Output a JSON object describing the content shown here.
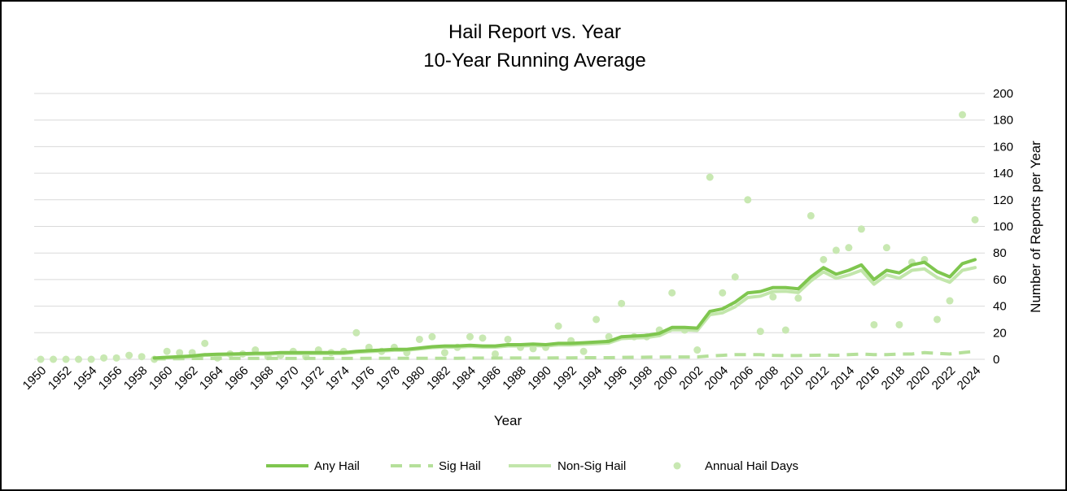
{
  "chart_data": {
    "type": "line",
    "title": "Hail Report vs. Year",
    "subtitle": "10-Year Running Average",
    "xlabel": "Year",
    "ylabel": "Number of Reports per Year",
    "ylim": [
      0,
      200
    ],
    "yticks": [
      0,
      20,
      40,
      60,
      80,
      100,
      120,
      140,
      160,
      180,
      200
    ],
    "y_axis_side": "right",
    "grid": true,
    "legend_position": "bottom",
    "x": [
      1950,
      1951,
      1952,
      1953,
      1954,
      1955,
      1956,
      1957,
      1958,
      1959,
      1960,
      1961,
      1962,
      1963,
      1964,
      1965,
      1966,
      1967,
      1968,
      1969,
      1970,
      1971,
      1972,
      1973,
      1974,
      1975,
      1976,
      1977,
      1978,
      1979,
      1980,
      1981,
      1982,
      1983,
      1984,
      1985,
      1986,
      1987,
      1988,
      1989,
      1990,
      1991,
      1992,
      1993,
      1994,
      1995,
      1996,
      1997,
      1998,
      1999,
      2000,
      2001,
      2002,
      2003,
      2004,
      2005,
      2006,
      2007,
      2008,
      2009,
      2010,
      2011,
      2012,
      2013,
      2014,
      2015,
      2016,
      2017,
      2018,
      2019,
      2020,
      2021,
      2022,
      2023,
      2024
    ],
    "x_tick_labels": [
      "1950",
      "1952",
      "1954",
      "1956",
      "1958",
      "1960",
      "1962",
      "1964",
      "1966",
      "1968",
      "1970",
      "1972",
      "1974",
      "1976",
      "1978",
      "1980",
      "1982",
      "1984",
      "1986",
      "1988",
      "1990",
      "1992",
      "1994",
      "1996",
      "1998",
      "2000",
      "2002",
      "2004",
      "2006",
      "2008",
      "2010",
      "2012",
      "2014",
      "2016",
      "2018",
      "2020",
      "2022",
      "2024"
    ],
    "series": [
      {
        "name": "Any Hail",
        "style": "solid-thick",
        "color": "#7fc64f",
        "values": [
          null,
          null,
          null,
          null,
          null,
          null,
          null,
          null,
          null,
          1,
          1.5,
          2,
          2.5,
          3.5,
          3.8,
          4,
          4.2,
          4.5,
          4.5,
          5,
          5,
          5,
          5,
          5,
          5,
          6,
          6.5,
          7,
          7.5,
          7.5,
          8.5,
          9.5,
          10,
          10,
          10.5,
          10,
          10,
          11,
          11,
          11.5,
          11,
          12,
          12,
          12.5,
          13,
          13.5,
          17,
          17.5,
          18,
          19.5,
          24,
          24,
          23.5,
          36,
          38,
          43,
          50,
          51,
          54,
          54,
          53,
          62,
          69,
          64,
          67,
          71,
          60,
          67,
          65,
          71,
          73,
          66,
          62,
          72,
          75
        ]
      },
      {
        "name": "Sig Hail",
        "style": "dashed",
        "color": "#b5e09a",
        "values": [
          null,
          null,
          null,
          null,
          null,
          null,
          null,
          null,
          null,
          0.3,
          0.4,
          0.5,
          0.6,
          0.6,
          0.7,
          0.7,
          0.7,
          0.7,
          0.7,
          0.7,
          0.7,
          0.7,
          0.7,
          0.7,
          0.7,
          0.7,
          0.8,
          0.8,
          0.8,
          0.8,
          0.8,
          0.8,
          0.8,
          0.8,
          0.9,
          0.9,
          0.9,
          1,
          1,
          1,
          1,
          1.1,
          1.1,
          1.2,
          1.2,
          1.2,
          1.4,
          1.5,
          1.6,
          1.7,
          1.8,
          1.8,
          1.8,
          2.5,
          3,
          3.5,
          3.5,
          3.5,
          3,
          2.8,
          2.8,
          3,
          3.2,
          3,
          3.5,
          4,
          3.5,
          3.5,
          4,
          4,
          5,
          4.5,
          4,
          5,
          6
        ]
      },
      {
        "name": "Non-Sig Hail",
        "style": "solid",
        "color": "#c2e6ab",
        "values": [
          null,
          null,
          null,
          null,
          null,
          null,
          null,
          null,
          null,
          0.8,
          1.2,
          1.6,
          2,
          3,
          3.2,
          3.4,
          3.6,
          3.9,
          3.9,
          4.3,
          4.3,
          4.3,
          4.3,
          4.3,
          4.3,
          5.2,
          5.8,
          6.2,
          6.8,
          6.8,
          7.8,
          8.8,
          9.2,
          9.2,
          9.7,
          9.2,
          9.2,
          10,
          10,
          10.4,
          10,
          10.9,
          10.9,
          11.3,
          11.8,
          12.3,
          15.6,
          16,
          16.4,
          17.8,
          22.2,
          22.2,
          21.7,
          33.5,
          35,
          39.5,
          46.5,
          47.5,
          51,
          51.2,
          50.2,
          59,
          65.8,
          61,
          63.5,
          67,
          56.5,
          63.5,
          61,
          67,
          68,
          61.5,
          58,
          67,
          69
        ]
      },
      {
        "name": "Annual Hail Days",
        "style": "markers",
        "color": "#c8e8b2",
        "values": [
          0,
          0,
          0,
          0,
          0,
          1,
          1,
          3,
          2,
          0,
          6,
          5,
          5,
          12,
          1,
          4,
          4,
          7,
          2,
          3,
          6,
          2,
          7,
          5,
          6,
          20,
          9,
          6,
          9,
          5,
          15,
          17,
          5,
          9,
          17,
          16,
          4,
          15,
          9,
          8,
          9,
          25,
          14,
          6,
          30,
          17,
          42,
          17,
          17,
          22,
          50,
          22,
          7,
          137,
          50,
          62,
          120,
          21,
          47,
          22,
          46,
          108,
          75,
          82,
          84,
          98,
          26,
          84,
          26,
          73,
          75,
          30,
          44,
          184,
          105
        ]
      }
    ]
  }
}
